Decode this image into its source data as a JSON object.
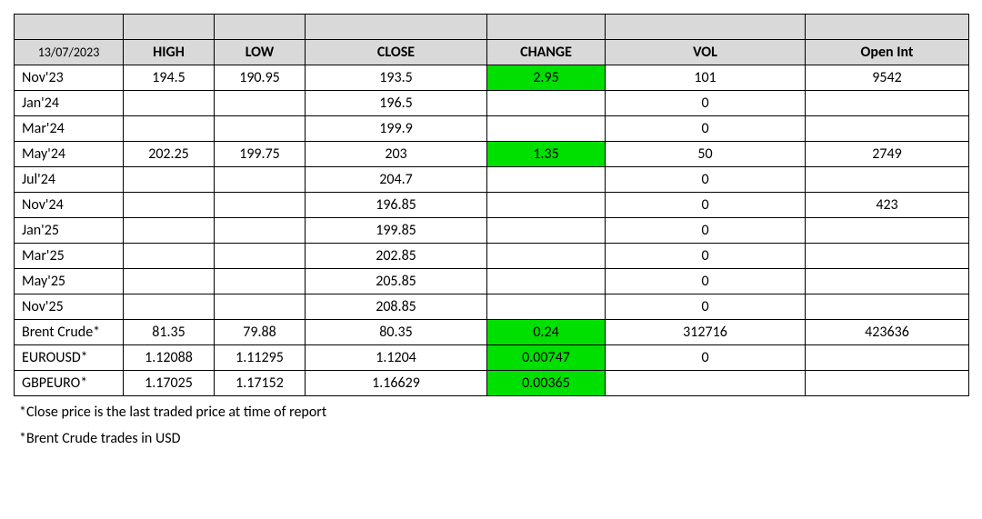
{
  "table": {
    "date": "13/07/2023",
    "headers": {
      "high": "HIGH",
      "low": "LOW",
      "close": "CLOSE",
      "change": "CHANGE",
      "vol": "VOL",
      "oi": "Open Int"
    },
    "highlight_color": "#00e000",
    "header_bg": "#d9d9d9",
    "border_color": "#000000",
    "rows": [
      {
        "label": "Nov'23",
        "high": "194.5",
        "low": "190.95",
        "close": "193.5",
        "change": "2.95",
        "change_hl": true,
        "vol": "101",
        "oi": "9542"
      },
      {
        "label": "Jan'24",
        "high": "",
        "low": "",
        "close": "196.5",
        "change": "",
        "change_hl": false,
        "vol": "0",
        "oi": ""
      },
      {
        "label": "Mar'24",
        "high": "",
        "low": "",
        "close": "199.9",
        "change": "",
        "change_hl": false,
        "vol": "0",
        "oi": ""
      },
      {
        "label": "May'24",
        "high": "202.25",
        "low": "199.75",
        "close": "203",
        "change": "1.35",
        "change_hl": true,
        "vol": "50",
        "oi": "2749"
      },
      {
        "label": "Jul'24",
        "high": "",
        "low": "",
        "close": "204.7",
        "change": "",
        "change_hl": false,
        "vol": "0",
        "oi": ""
      },
      {
        "label": "Nov'24",
        "high": "",
        "low": "",
        "close": "196.85",
        "change": "",
        "change_hl": false,
        "vol": "0",
        "oi": "423"
      },
      {
        "label": "Jan'25",
        "high": "",
        "low": "",
        "close": "199.85",
        "change": "",
        "change_hl": false,
        "vol": "0",
        "oi": ""
      },
      {
        "label": "Mar'25",
        "high": "",
        "low": "",
        "close": "202.85",
        "change": "",
        "change_hl": false,
        "vol": "0",
        "oi": ""
      },
      {
        "label": "May'25",
        "high": "",
        "low": "",
        "close": "205.85",
        "change": "",
        "change_hl": false,
        "vol": "0",
        "oi": ""
      },
      {
        "label": "Nov'25",
        "high": "",
        "low": "",
        "close": "208.85",
        "change": "",
        "change_hl": false,
        "vol": "0",
        "oi": ""
      },
      {
        "label": "Brent Crude*",
        "high": "81.35",
        "low": "79.88",
        "close": "80.35",
        "change": "0.24",
        "change_hl": true,
        "vol": "312716",
        "oi": "423636"
      },
      {
        "label": "EUROUSD*",
        "high": "1.12088",
        "low": "1.11295",
        "close": "1.1204",
        "change": "0.00747",
        "change_hl": true,
        "vol": "0",
        "oi": ""
      },
      {
        "label": "GBPEURO*",
        "high": "1.17025",
        "low": "1.17152",
        "close": "1.16629",
        "change": "0.00365",
        "change_hl": true,
        "vol": "",
        "oi": ""
      }
    ]
  },
  "footnotes": {
    "note1": "*Close price is the last traded price at time of report",
    "note2": "*Brent Crude trades in USD"
  }
}
